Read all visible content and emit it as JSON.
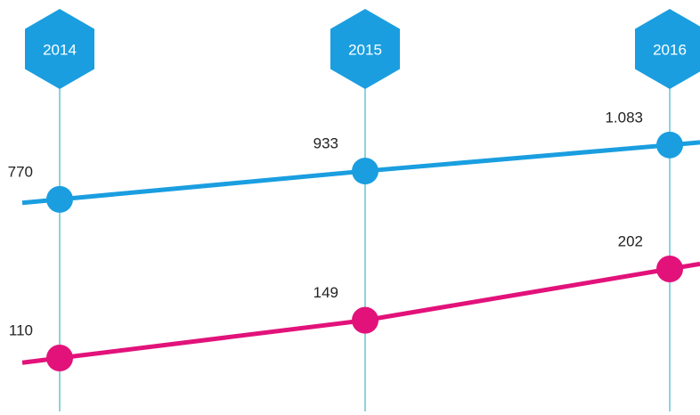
{
  "chart_data": {
    "type": "line",
    "categories": [
      "2014",
      "2015",
      "2016"
    ],
    "series": [
      {
        "color": "#1a9ee0",
        "values": [
          770,
          933,
          1083
        ],
        "value_labels": [
          "770",
          "933",
          "1.083"
        ]
      },
      {
        "color": "#e2127a",
        "values": [
          110,
          149,
          202
        ],
        "value_labels": [
          "110",
          "149",
          "202"
        ]
      }
    ]
  }
}
